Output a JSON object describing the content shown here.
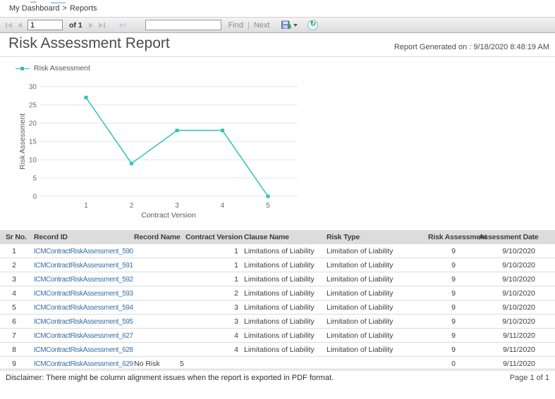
{
  "breadcrumb": {
    "items": [
      "My Dashboard",
      "Reports"
    ],
    "separator": ">"
  },
  "toolbar": {
    "page_input_value": "1",
    "page_count_label": "of 1",
    "search_input_value": "",
    "find_label": "Find",
    "next_label": "Next",
    "separator": "|",
    "icons": {
      "first_page": "first-page-icon",
      "previous_page": "previous-page-icon",
      "next_page": "next-page-icon",
      "last_page": "last-page-icon",
      "parent_report": "return-arrow-icon",
      "parent_glyph": "↩",
      "export": "floppy-disk-icon",
      "export_caret": "chevron-down-icon",
      "refresh": "refresh-icon",
      "refresh_glyph": "↻"
    }
  },
  "report": {
    "title": "Risk Assessment Report",
    "generated_label": "Report Generated on : 9/18/2020 8:48:19 AM",
    "footer": {
      "disclaimer": "Disclaimer: There might be column alignment issues when the report is exported in PDF format.",
      "page_label": "Page 1 of 1"
    }
  },
  "chart_data": {
    "type": "line",
    "legend": [
      "Risk Assessment"
    ],
    "legend_position": "top-left",
    "x": [
      1,
      2,
      3,
      4,
      5
    ],
    "series": [
      {
        "name": "Risk Assessment",
        "values": [
          27,
          9,
          18,
          18,
          0
        ]
      }
    ],
    "xlabel": "Contract Version",
    "ylabel": "Risk Assessment",
    "ylim": [
      0,
      30
    ],
    "yticks": [
      0,
      5,
      10,
      15,
      20,
      25,
      30
    ],
    "grid": true,
    "marker": "square",
    "line_color": "#2EC4B6"
  },
  "table": {
    "columns": [
      "Sr No.",
      "Record ID",
      "Record Name",
      "Contract Version",
      "Clause Name",
      "Risk Type",
      "Risk Assessment",
      "Assessment Date"
    ],
    "rows": [
      [
        "1",
        "ICMContractRiskAssessment_590",
        "",
        "1",
        "Limitations of Liability",
        "Limitation of Liability",
        "9",
        "9/10/2020"
      ],
      [
        "2",
        "ICMContractRiskAssessment_591",
        "",
        "1",
        "Limitations of Liability",
        "Limitation of Liability",
        "9",
        "9/10/2020"
      ],
      [
        "3",
        "ICMContractRiskAssessment_592",
        "",
        "1",
        "Limitations of Liability",
        "Limitation of Liability",
        "9",
        "9/10/2020"
      ],
      [
        "4",
        "ICMContractRiskAssessment_593",
        "",
        "2",
        "Limitations of Liability",
        "Limitation of Liability",
        "9",
        "9/10/2020"
      ],
      [
        "5",
        "ICMContractRiskAssessment_594",
        "",
        "3",
        "Limitations of Liability",
        "Limitation of Liability",
        "9",
        "9/10/2020"
      ],
      [
        "6",
        "ICMContractRiskAssessment_595",
        "",
        "3",
        "Limitations of Liability",
        "Limitation of Liability",
        "9",
        "9/10/2020"
      ],
      [
        "7",
        "ICMContractRiskAssessment_627",
        "",
        "4",
        "Limitations of Liability",
        "Limitation of Liability",
        "9",
        "9/11/2020"
      ],
      [
        "8",
        "ICMContractRiskAssessment_628",
        "",
        "4",
        "Limitations of Liability",
        "Limitation of Liability",
        "9",
        "9/11/2020"
      ],
      [
        "9",
        "ICMContractRiskAssessment_629",
        "No Risk",
        "5",
        "",
        "",
        "0",
        "9/11/2020"
      ]
    ]
  },
  "colors": {
    "accent_teal": "#2EC4B6",
    "link_blue": "#3A6EA5",
    "table_header_bg": "#DCDCDC"
  }
}
